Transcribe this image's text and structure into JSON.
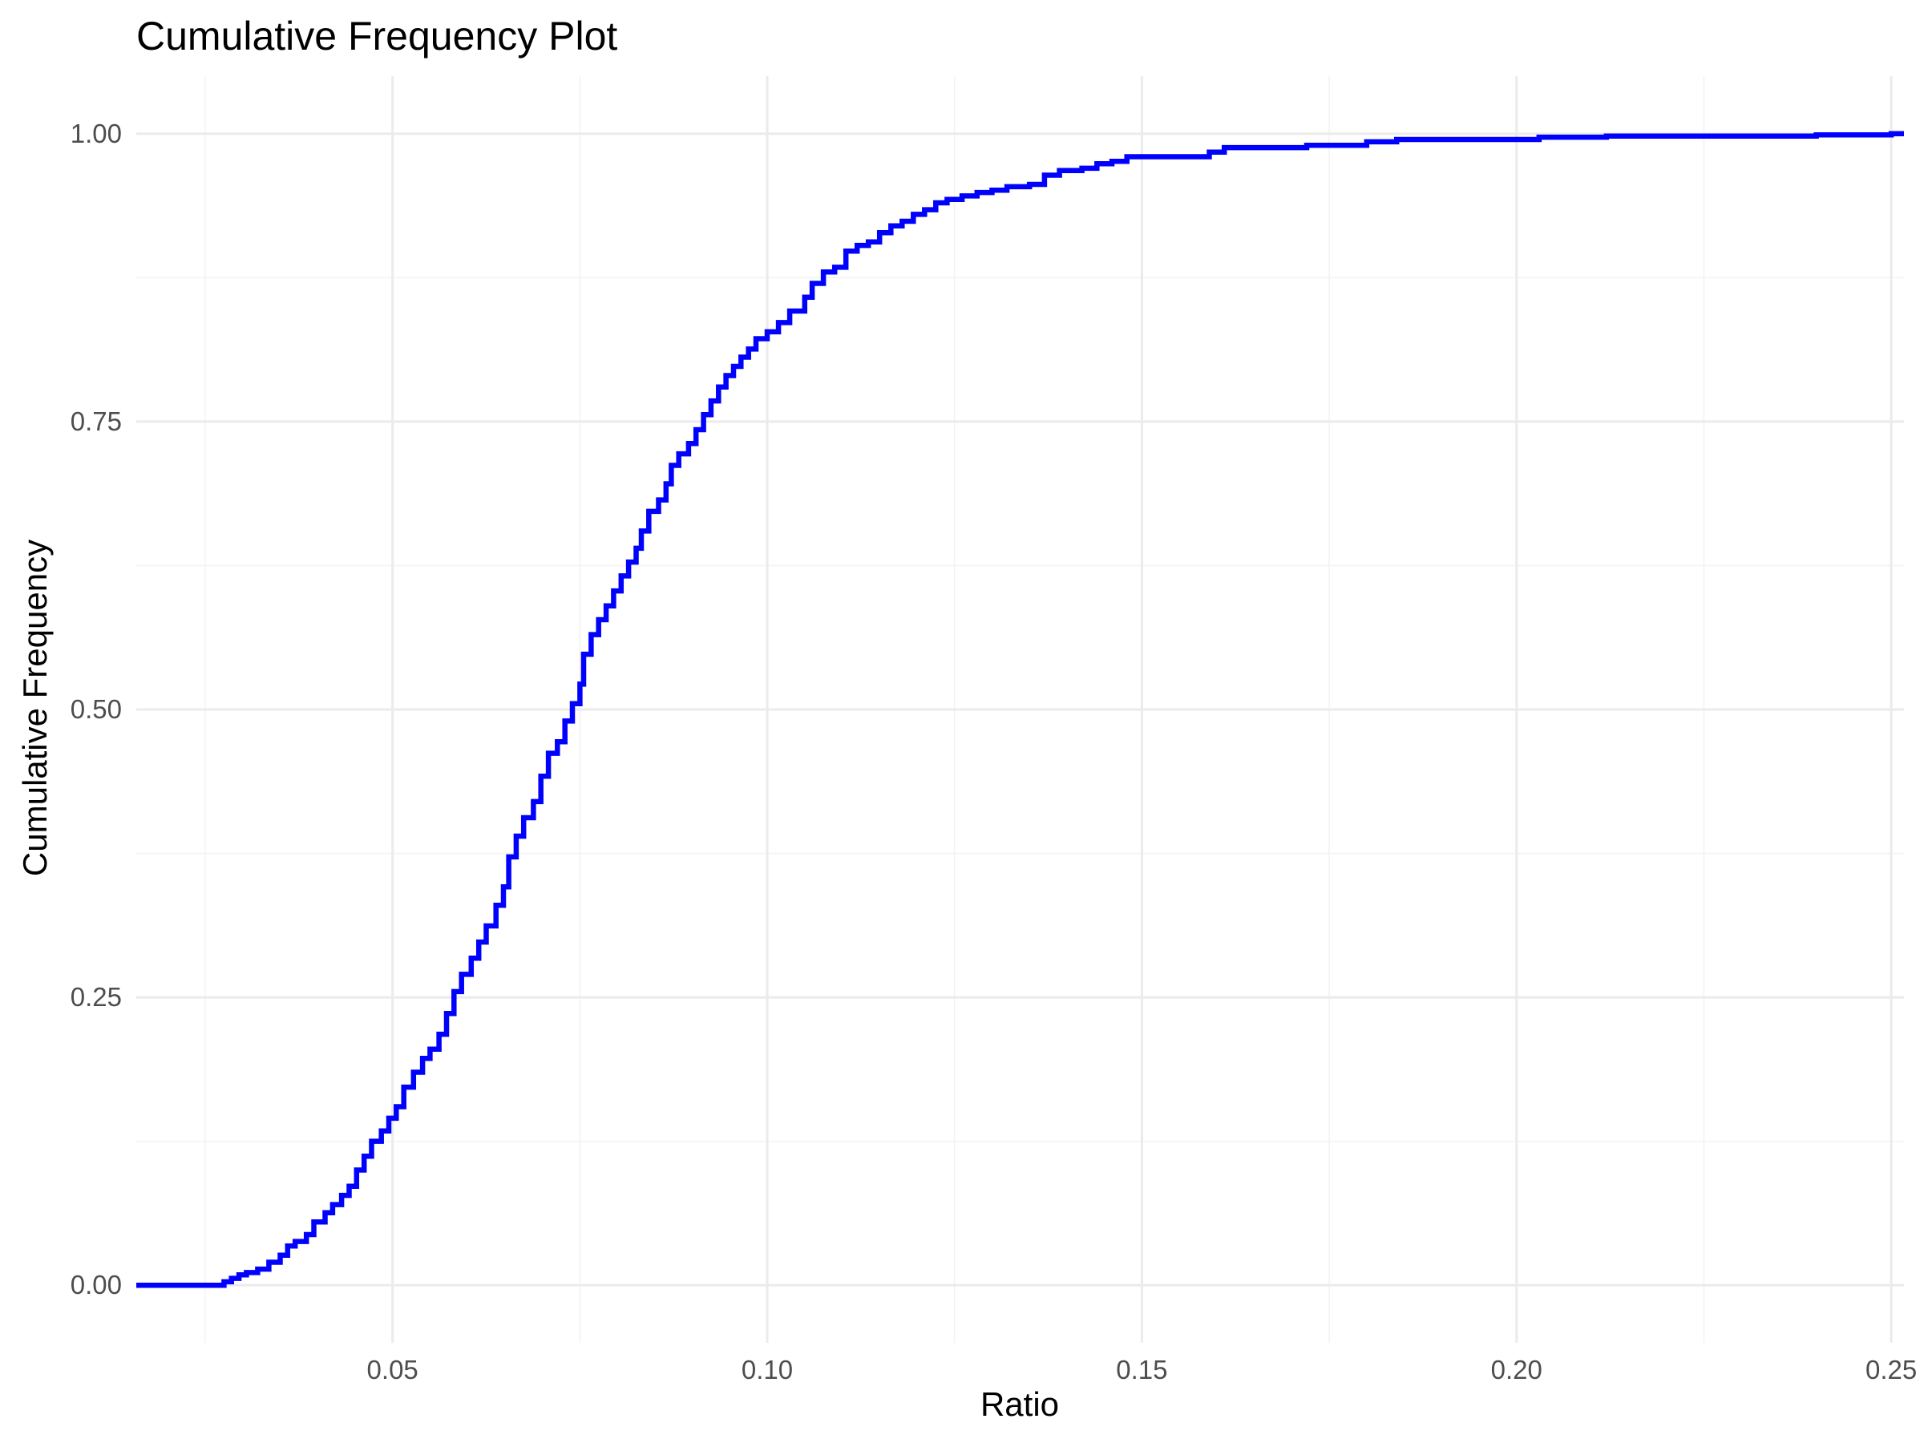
{
  "chart_data": {
    "type": "line",
    "subtype": "step-ecdf",
    "title": "Cumulative Frequency Plot",
    "xlabel": "Ratio",
    "ylabel": "Cumulative Frequency",
    "xlim": [
      0.0158,
      0.2517
    ],
    "ylim": [
      -0.05,
      1.05
    ],
    "x_ticks": [
      0.05,
      0.1,
      0.15,
      0.2,
      0.25
    ],
    "x_tick_labels": [
      "0.05",
      "0.10",
      "0.15",
      "0.20",
      "0.25"
    ],
    "x_minor_ticks": [
      0.025,
      0.075,
      0.125,
      0.175,
      0.225
    ],
    "y_ticks": [
      0.0,
      0.25,
      0.5,
      0.75,
      1.0
    ],
    "y_tick_labels": [
      "0.00",
      "0.25",
      "0.50",
      "0.75",
      "1.00"
    ],
    "y_minor_ticks": [
      0.125,
      0.375,
      0.625,
      0.875
    ],
    "grid": true,
    "legend": "none",
    "line_color": "#0000ff",
    "series": [
      {
        "points": [
          [
            0.0158,
            0.0
          ],
          [
            0.0265,
            0.0
          ],
          [
            0.0275,
            0.003
          ],
          [
            0.0285,
            0.006
          ],
          [
            0.0295,
            0.009
          ],
          [
            0.0305,
            0.011
          ],
          [
            0.032,
            0.014
          ],
          [
            0.0335,
            0.02
          ],
          [
            0.035,
            0.026
          ],
          [
            0.036,
            0.034
          ],
          [
            0.037,
            0.038
          ],
          [
            0.0385,
            0.044
          ],
          [
            0.0395,
            0.055
          ],
          [
            0.041,
            0.063
          ],
          [
            0.042,
            0.07
          ],
          [
            0.0432,
            0.078
          ],
          [
            0.0442,
            0.086
          ],
          [
            0.0452,
            0.1
          ],
          [
            0.0462,
            0.112
          ],
          [
            0.0472,
            0.125
          ],
          [
            0.0485,
            0.134
          ],
          [
            0.0495,
            0.145
          ],
          [
            0.0505,
            0.155
          ],
          [
            0.0515,
            0.172
          ],
          [
            0.0528,
            0.185
          ],
          [
            0.054,
            0.197
          ],
          [
            0.055,
            0.205
          ],
          [
            0.0562,
            0.218
          ],
          [
            0.0572,
            0.236
          ],
          [
            0.0582,
            0.255
          ],
          [
            0.0592,
            0.27
          ],
          [
            0.0605,
            0.284
          ],
          [
            0.0615,
            0.298
          ],
          [
            0.0625,
            0.312
          ],
          [
            0.0638,
            0.33
          ],
          [
            0.0648,
            0.346
          ],
          [
            0.0655,
            0.372
          ],
          [
            0.0665,
            0.39
          ],
          [
            0.0675,
            0.406
          ],
          [
            0.0688,
            0.42
          ],
          [
            0.0698,
            0.442
          ],
          [
            0.0708,
            0.462
          ],
          [
            0.072,
            0.472
          ],
          [
            0.073,
            0.49
          ],
          [
            0.074,
            0.505
          ],
          [
            0.075,
            0.522
          ],
          [
            0.0755,
            0.548
          ],
          [
            0.0765,
            0.565
          ],
          [
            0.0775,
            0.578
          ],
          [
            0.0785,
            0.59
          ],
          [
            0.0795,
            0.603
          ],
          [
            0.0805,
            0.616
          ],
          [
            0.0815,
            0.628
          ],
          [
            0.0825,
            0.64
          ],
          [
            0.0832,
            0.655
          ],
          [
            0.0842,
            0.672
          ],
          [
            0.0855,
            0.682
          ],
          [
            0.0865,
            0.696
          ],
          [
            0.0872,
            0.712
          ],
          [
            0.0882,
            0.722
          ],
          [
            0.0895,
            0.731
          ],
          [
            0.0905,
            0.743
          ],
          [
            0.0915,
            0.756
          ],
          [
            0.0925,
            0.768
          ],
          [
            0.0935,
            0.78
          ],
          [
            0.0945,
            0.79
          ],
          [
            0.0955,
            0.798
          ],
          [
            0.0965,
            0.806
          ],
          [
            0.0975,
            0.813
          ],
          [
            0.0985,
            0.822
          ],
          [
            0.1,
            0.828
          ],
          [
            0.1015,
            0.836
          ],
          [
            0.103,
            0.846
          ],
          [
            0.105,
            0.858
          ],
          [
            0.106,
            0.87
          ],
          [
            0.1075,
            0.88
          ],
          [
            0.109,
            0.884
          ],
          [
            0.1105,
            0.898
          ],
          [
            0.112,
            0.903
          ],
          [
            0.1135,
            0.906
          ],
          [
            0.115,
            0.914
          ],
          [
            0.1165,
            0.92
          ],
          [
            0.118,
            0.924
          ],
          [
            0.1195,
            0.93
          ],
          [
            0.121,
            0.934
          ],
          [
            0.1225,
            0.94
          ],
          [
            0.124,
            0.943
          ],
          [
            0.126,
            0.946
          ],
          [
            0.128,
            0.949
          ],
          [
            0.13,
            0.951
          ],
          [
            0.132,
            0.954
          ],
          [
            0.135,
            0.956
          ],
          [
            0.137,
            0.964
          ],
          [
            0.139,
            0.968
          ],
          [
            0.142,
            0.97
          ],
          [
            0.144,
            0.974
          ],
          [
            0.146,
            0.976
          ],
          [
            0.148,
            0.98
          ],
          [
            0.158,
            0.98
          ],
          [
            0.159,
            0.984
          ],
          [
            0.161,
            0.988
          ],
          [
            0.17,
            0.988
          ],
          [
            0.172,
            0.99
          ],
          [
            0.178,
            0.99
          ],
          [
            0.18,
            0.993
          ],
          [
            0.184,
            0.995
          ],
          [
            0.199,
            0.995
          ],
          [
            0.203,
            0.997
          ],
          [
            0.212,
            0.998
          ],
          [
            0.24,
            0.999
          ],
          [
            0.25,
            1.0
          ],
          [
            0.2517,
            1.0
          ]
        ]
      }
    ]
  }
}
